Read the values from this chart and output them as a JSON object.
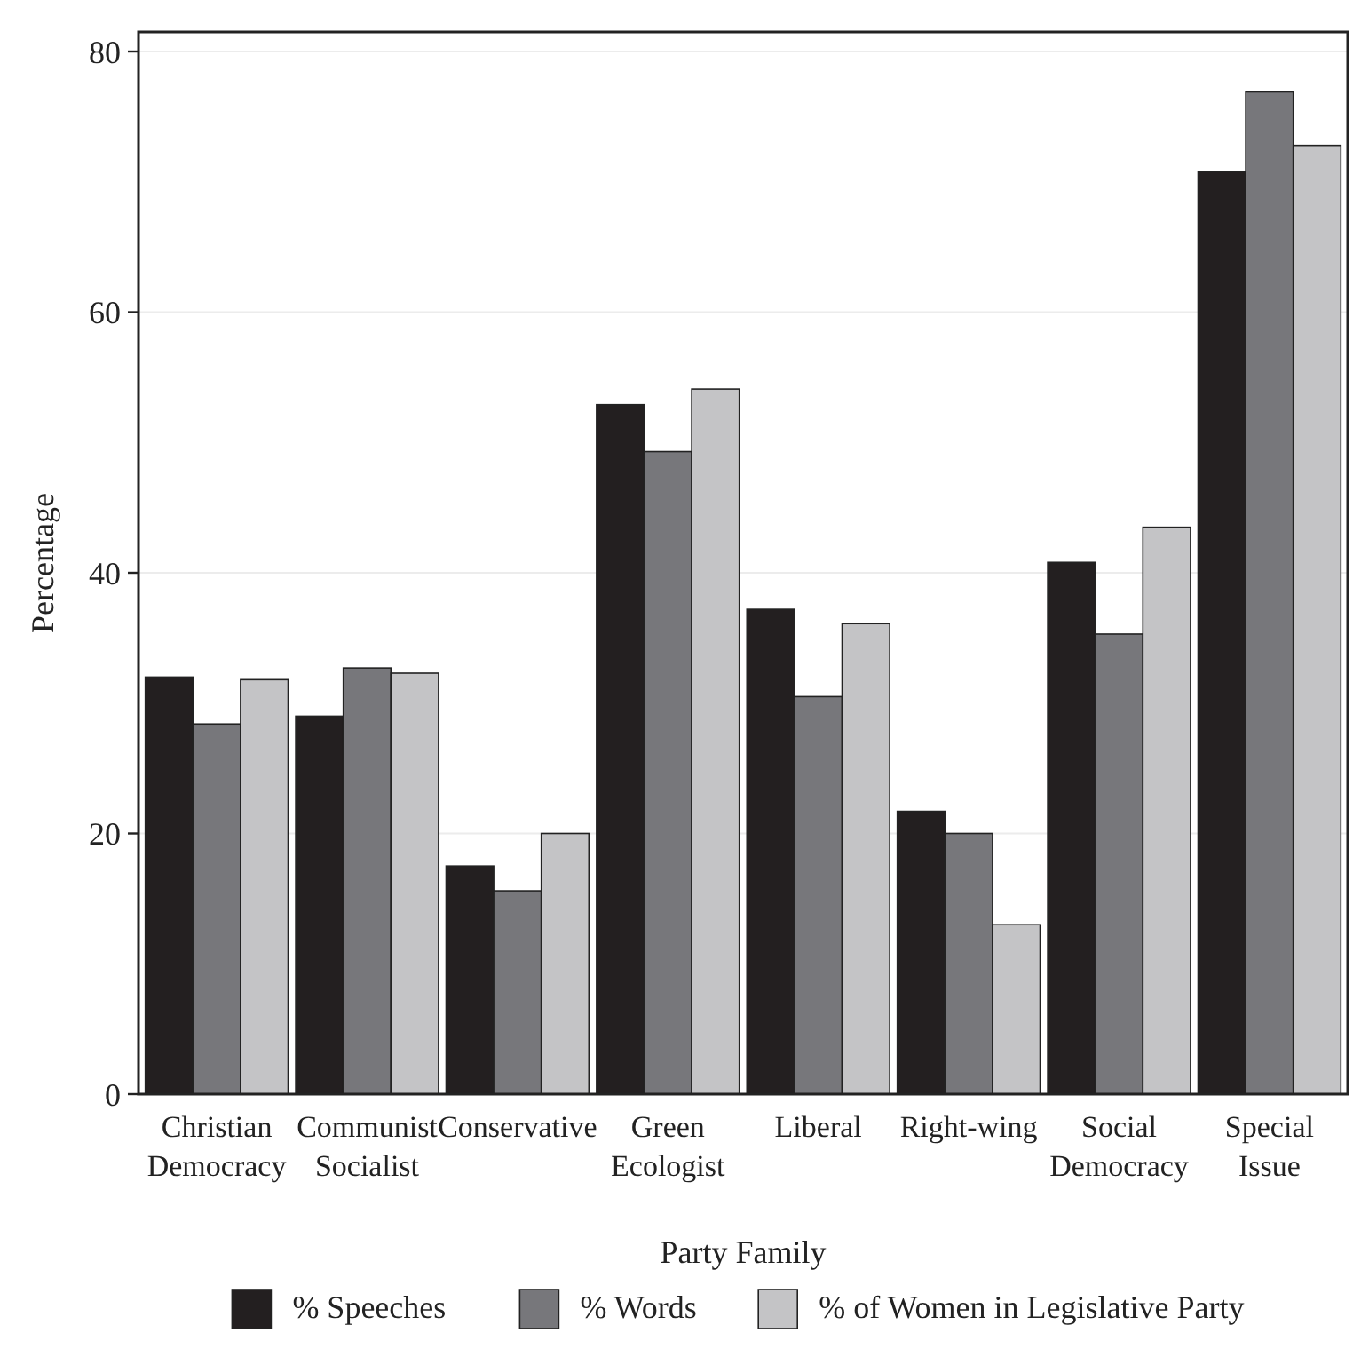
{
  "chart_data": {
    "type": "bar",
    "xlabel": "Party Family",
    "ylabel": "Percentage",
    "categories": [
      "Christian\nDemocracy",
      "Communist\nSocialist",
      "Conservative",
      "Green\nEcologist",
      "Liberal",
      "Right-wing",
      "Social\nDemocracy",
      "Special\nIssue"
    ],
    "series": [
      {
        "name": "% Speeches",
        "color": "#231f20",
        "values": [
          32.0,
          29.0,
          17.5,
          52.9,
          37.2,
          21.7,
          40.8,
          70.8
        ]
      },
      {
        "name": "% Words",
        "color": "#77777b",
        "values": [
          28.4,
          32.7,
          15.6,
          49.3,
          30.5,
          20.0,
          35.3,
          76.9
        ]
      },
      {
        "name": "% of Women in Legislative Party",
        "color": "#c4c4c6",
        "values": [
          31.8,
          32.3,
          20.0,
          54.1,
          36.1,
          13.0,
          43.5,
          72.8
        ]
      }
    ],
    "ylim": [
      0,
      81.5
    ],
    "yticks": [
      0,
      20,
      40,
      60,
      80
    ],
    "grid": "y",
    "legend": "bottom"
  }
}
